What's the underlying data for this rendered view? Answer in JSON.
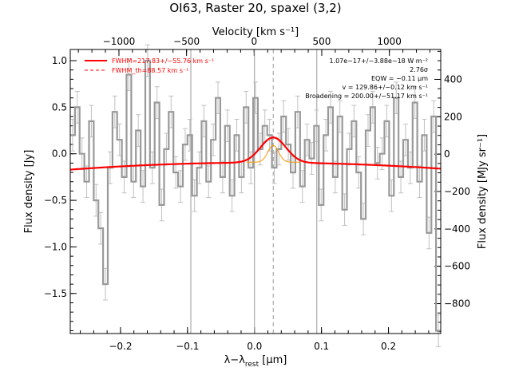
{
  "chart_data": {
    "type": "line",
    "title": "OI63, Raster 20, spaxel (3,2)",
    "xlabel": "λ−λ",
    "xlabel_sub": "rest",
    "xlabel_unit": " [μm]",
    "ylabel": "Flux density [Jy]",
    "top_axis_label": "Velocity [km s⁻¹]",
    "right_axis_label": "Flux density [MJy sr⁻¹]",
    "xlim": [
      -0.275,
      0.278
    ],
    "ylim": [
      -1.93,
      1.12
    ],
    "top_xlim": [
      -1360,
      1380
    ],
    "right_ylim": [
      -960,
      560
    ],
    "x_ticks": [
      -0.2,
      -0.1,
      0.0,
      0.1,
      0.2
    ],
    "x_tick_labels": [
      "−0.2",
      "−0.1",
      "0.0",
      "0.1",
      "0.2"
    ],
    "y_ticks": [
      -1.5,
      -1.0,
      -0.5,
      0.0,
      0.5,
      1.0
    ],
    "y_tick_labels": [
      "−1.5",
      "−1.0",
      "−0.5",
      "0.0",
      "0.5",
      "1.0"
    ],
    "top_ticks": [
      -1000,
      -500,
      0,
      500,
      1000
    ],
    "top_tick_labels": [
      "−1000",
      "−500",
      "0",
      "500",
      "1000"
    ],
    "right_ticks": [
      -800,
      -600,
      -400,
      -200,
      0,
      200,
      400
    ],
    "right_tick_labels": [
      "−800",
      "−600",
      "−400",
      "−200",
      "0",
      "200",
      "400"
    ],
    "vertical_lines_x": [
      -0.095,
      0.0,
      0.093
    ],
    "line_center_x": 0.028,
    "legend": [
      {
        "label": "FWHM=217.83+/−55.76 km s⁻¹",
        "style": "solid",
        "color": "#ff0000"
      },
      {
        "label": "FWHM_th=88.57 km s⁻¹",
        "style": "dashed",
        "color": "#ff0000"
      }
    ],
    "annotations": [
      "1.07e−17+/−3.88e−18 W m⁻²",
      "2.76σ",
      "EQW = −0.11 μm",
      "v = 129.86+/−0.12 km s⁻¹",
      "Broadening = 200.00+/−51.17 km s⁻¹"
    ],
    "series": [
      {
        "style": "step",
        "color": "#999999",
        "x": [
          -0.275,
          -0.268,
          -0.261,
          -0.254,
          -0.247,
          -0.24,
          -0.233,
          -0.226,
          -0.219,
          -0.212,
          -0.205,
          -0.198,
          -0.191,
          -0.184,
          -0.177,
          -0.17,
          -0.163,
          -0.156,
          -0.149,
          -0.142,
          -0.135,
          -0.128,
          -0.121,
          -0.114,
          -0.107,
          -0.1,
          -0.093,
          -0.086,
          -0.079,
          -0.072,
          -0.065,
          -0.058,
          -0.051,
          -0.044,
          -0.037,
          -0.03,
          -0.023,
          -0.016,
          -0.009,
          -0.002,
          0.005,
          0.012,
          0.019,
          0.026,
          0.033,
          0.04,
          0.047,
          0.054,
          0.061,
          0.068,
          0.075,
          0.082,
          0.089,
          0.096,
          0.103,
          0.11,
          0.117,
          0.124,
          0.131,
          0.138,
          0.145,
          0.152,
          0.159,
          0.166,
          0.173,
          0.18,
          0.187,
          0.194,
          0.201,
          0.208,
          0.215,
          0.222,
          0.229,
          0.236,
          0.243,
          0.25,
          0.257,
          0.264,
          0.271
        ],
        "y": [
          0.2,
          0.5,
          0.0,
          -0.3,
          0.35,
          -0.5,
          -0.8,
          -1.4,
          -0.15,
          0.45,
          0.15,
          -0.25,
          0.85,
          -0.3,
          0.25,
          -0.35,
          1.0,
          -0.15,
          0.55,
          -0.55,
          0.05,
          0.45,
          -0.2,
          -0.35,
          0.1,
          0.2,
          -0.45,
          -0.15,
          0.35,
          -0.3,
          0.15,
          0.6,
          -0.25,
          0.3,
          -0.45,
          0.2,
          -0.25,
          0.5,
          -0.15,
          0.6,
          0.05,
          0.3,
          0.2,
          -0.15,
          0.05,
          0.4,
          0.1,
          -0.2,
          0.45,
          -0.35,
          0.15,
          -0.05,
          0.3,
          -0.55,
          0.2,
          0.5,
          -0.25,
          0.4,
          -0.6,
          0.05,
          0.35,
          -0.2,
          -0.7,
          0.25,
          0.5,
          -0.1,
          0.0,
          0.35,
          -0.45,
          0.6,
          -0.25,
          0.15,
          -0.15,
          0.55,
          -0.3,
          0.2,
          -0.85,
          0.4,
          -1.9
        ],
        "err": 0.17
      },
      {
        "style": "line",
        "color": "#ff0000",
        "kind": "model_fit",
        "baseline": {
          "x": [
            -0.275,
            0.278
          ],
          "y": [
            -0.17,
            -0.16
          ],
          "curvature": 0.07
        },
        "gaussian": {
          "center": 0.028,
          "amplitude": 0.27,
          "sigma": 0.019
        }
      },
      {
        "style": "line",
        "color": "#ff9900",
        "kind": "intrinsic_component",
        "gaussian": {
          "center": 0.028,
          "amplitude": 0.18,
          "sigma": 0.008,
          "offset": -0.09
        }
      }
    ]
  }
}
